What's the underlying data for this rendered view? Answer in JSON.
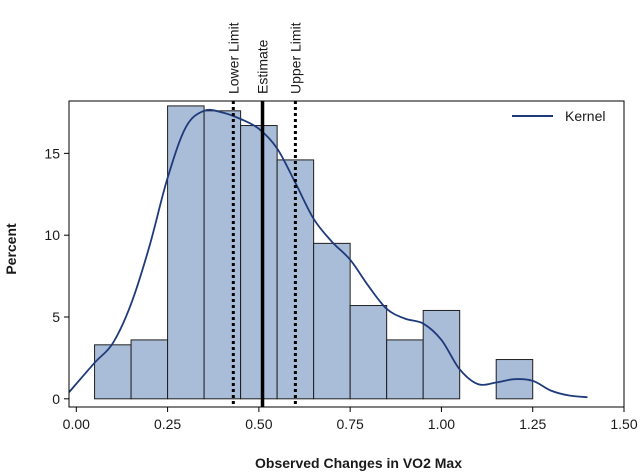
{
  "chart_data": {
    "type": "histogram",
    "xlabel": "Observed Changes in VO2 Max",
    "ylabel": "Percent",
    "xlim": [
      -0.02,
      1.5
    ],
    "ylim": [
      -0.5,
      18.2
    ],
    "x_ticks": [
      0.0,
      0.25,
      0.5,
      0.75,
      1.0,
      1.25,
      1.5
    ],
    "x_tick_labels": [
      "0.00",
      "0.25",
      "0.50",
      "0.75",
      "1.00",
      "1.25",
      "1.50"
    ],
    "y_ticks": [
      0,
      5,
      10,
      15
    ],
    "y_tick_labels": [
      "0",
      "5",
      "10",
      "15"
    ],
    "bin_width": 0.1,
    "bars": [
      {
        "x0": 0.05,
        "x1": 0.15,
        "value": 3.3
      },
      {
        "x0": 0.15,
        "x1": 0.25,
        "value": 3.6
      },
      {
        "x0": 0.25,
        "x1": 0.35,
        "value": 17.9
      },
      {
        "x0": 0.35,
        "x1": 0.45,
        "value": 17.6
      },
      {
        "x0": 0.45,
        "x1": 0.55,
        "value": 16.7
      },
      {
        "x0": 0.55,
        "x1": 0.65,
        "value": 14.6
      },
      {
        "x0": 0.65,
        "x1": 0.75,
        "value": 9.5
      },
      {
        "x0": 0.75,
        "x1": 0.85,
        "value": 5.7
      },
      {
        "x0": 0.85,
        "x1": 0.95,
        "value": 3.6
      },
      {
        "x0": 0.95,
        "x1": 1.05,
        "value": 5.4
      },
      {
        "x0": 1.05,
        "x1": 1.15,
        "value": 0
      },
      {
        "x0": 1.15,
        "x1": 1.25,
        "value": 2.4
      }
    ],
    "kernel": {
      "name": "Kernel",
      "x": [
        -0.02,
        0.05,
        0.1,
        0.15,
        0.2,
        0.25,
        0.3,
        0.35,
        0.4,
        0.45,
        0.5,
        0.55,
        0.6,
        0.65,
        0.7,
        0.75,
        0.8,
        0.85,
        0.9,
        0.95,
        1.0,
        1.05,
        1.1,
        1.15,
        1.2,
        1.25,
        1.3,
        1.35,
        1.4
      ],
      "y": [
        0.4,
        2.2,
        3.4,
        5.8,
        9.3,
        13.5,
        16.6,
        17.6,
        17.5,
        17.1,
        16.5,
        15.3,
        13.2,
        11.0,
        9.6,
        8.5,
        6.9,
        5.5,
        4.9,
        4.6,
        3.6,
        1.8,
        0.9,
        1.0,
        1.2,
        1.1,
        0.5,
        0.2,
        0.1
      ]
    },
    "reference_lines": [
      {
        "label": "Lower Limit",
        "x": 0.43,
        "style": "dotted"
      },
      {
        "label": "Estimate",
        "x": 0.51,
        "style": "solid"
      },
      {
        "label": "Upper Limit",
        "x": 0.6,
        "style": "dotted"
      }
    ],
    "legend": {
      "position": "top-right",
      "entries": [
        "Kernel"
      ]
    },
    "colors": {
      "bar_fill": "#a9bdd8",
      "bar_stroke": "#1f1f1f",
      "kernel": "#1f3a7a",
      "axis": "#000000"
    }
  }
}
